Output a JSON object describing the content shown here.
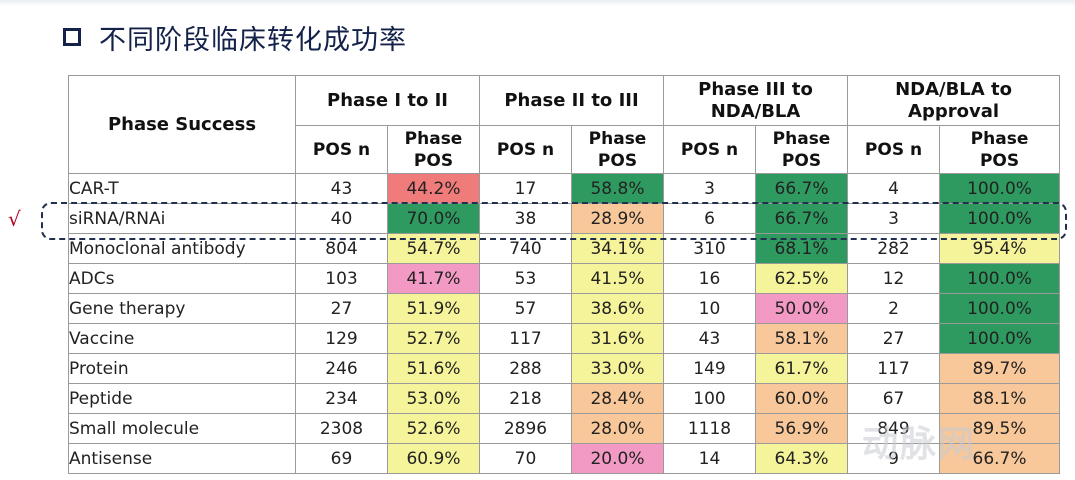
{
  "title": "不同阶段临床转化成功率",
  "check_mark": "√",
  "watermark": "动脉网",
  "table": {
    "corner_label": "Phase Success",
    "phases": [
      "Phase I to II",
      "Phase II to III",
      "Phase III to NDA/BLA",
      "NDA/BLA to Approval"
    ],
    "sub_pos_n": "POS n",
    "sub_phase_pos": "Phase POS",
    "colors": {
      "green": "#2f9a60",
      "yellow": "#f6f49a",
      "peach": "#f8c89a",
      "pink": "#f29ac4",
      "red": "#f07b7b"
    },
    "rows": [
      {
        "name": "CAR-T",
        "cells": [
          {
            "n": "43",
            "pct": "44.2%",
            "color": "red"
          },
          {
            "n": "17",
            "pct": "58.8%",
            "color": "green"
          },
          {
            "n": "3",
            "pct": "66.7%",
            "color": "green"
          },
          {
            "n": "4",
            "pct": "100.0%",
            "color": "green"
          }
        ]
      },
      {
        "name": "siRNA/RNAi",
        "cells": [
          {
            "n": "40",
            "pct": "70.0%",
            "color": "green"
          },
          {
            "n": "38",
            "pct": "28.9%",
            "color": "peach"
          },
          {
            "n": "6",
            "pct": "66.7%",
            "color": "green"
          },
          {
            "n": "3",
            "pct": "100.0%",
            "color": "green"
          }
        ]
      },
      {
        "name": "Monoclonal antibody",
        "cells": [
          {
            "n": "804",
            "pct": "54.7%",
            "color": "yellow"
          },
          {
            "n": "740",
            "pct": "34.1%",
            "color": "yellow"
          },
          {
            "n": "310",
            "pct": "68.1%",
            "color": "green"
          },
          {
            "n": "282",
            "pct": "95.4%",
            "color": "yellow"
          }
        ]
      },
      {
        "name": "ADCs",
        "cells": [
          {
            "n": "103",
            "pct": "41.7%",
            "color": "pink"
          },
          {
            "n": "53",
            "pct": "41.5%",
            "color": "yellow"
          },
          {
            "n": "16",
            "pct": "62.5%",
            "color": "yellow"
          },
          {
            "n": "12",
            "pct": "100.0%",
            "color": "green"
          }
        ]
      },
      {
        "name": "Gene therapy",
        "cells": [
          {
            "n": "27",
            "pct": "51.9%",
            "color": "yellow"
          },
          {
            "n": "57",
            "pct": "38.6%",
            "color": "yellow"
          },
          {
            "n": "10",
            "pct": "50.0%",
            "color": "pink"
          },
          {
            "n": "2",
            "pct": "100.0%",
            "color": "green"
          }
        ]
      },
      {
        "name": "Vaccine",
        "cells": [
          {
            "n": "129",
            "pct": "52.7%",
            "color": "yellow"
          },
          {
            "n": "117",
            "pct": "31.6%",
            "color": "yellow"
          },
          {
            "n": "43",
            "pct": "58.1%",
            "color": "peach"
          },
          {
            "n": "27",
            "pct": "100.0%",
            "color": "green"
          }
        ]
      },
      {
        "name": "Protein",
        "cells": [
          {
            "n": "246",
            "pct": "51.6%",
            "color": "yellow"
          },
          {
            "n": "288",
            "pct": "33.0%",
            "color": "yellow"
          },
          {
            "n": "149",
            "pct": "61.7%",
            "color": "yellow"
          },
          {
            "n": "117",
            "pct": "89.7%",
            "color": "peach"
          }
        ]
      },
      {
        "name": "Peptide",
        "cells": [
          {
            "n": "234",
            "pct": "53.0%",
            "color": "yellow"
          },
          {
            "n": "218",
            "pct": "28.4%",
            "color": "peach"
          },
          {
            "n": "100",
            "pct": "60.0%",
            "color": "peach"
          },
          {
            "n": "67",
            "pct": "88.1%",
            "color": "peach"
          }
        ]
      },
      {
        "name": "Small molecule",
        "cells": [
          {
            "n": "2308",
            "pct": "52.6%",
            "color": "yellow"
          },
          {
            "n": "2896",
            "pct": "28.0%",
            "color": "peach"
          },
          {
            "n": "1118",
            "pct": "56.9%",
            "color": "peach"
          },
          {
            "n": "849",
            "pct": "89.5%",
            "color": "peach"
          }
        ]
      },
      {
        "name": "Antisense",
        "cells": [
          {
            "n": "69",
            "pct": "60.9%",
            "color": "yellow"
          },
          {
            "n": "70",
            "pct": "20.0%",
            "color": "pink"
          },
          {
            "n": "14",
            "pct": "64.3%",
            "color": "yellow"
          },
          {
            "n": "9",
            "pct": "66.7%",
            "color": "peach"
          }
        ]
      }
    ]
  }
}
